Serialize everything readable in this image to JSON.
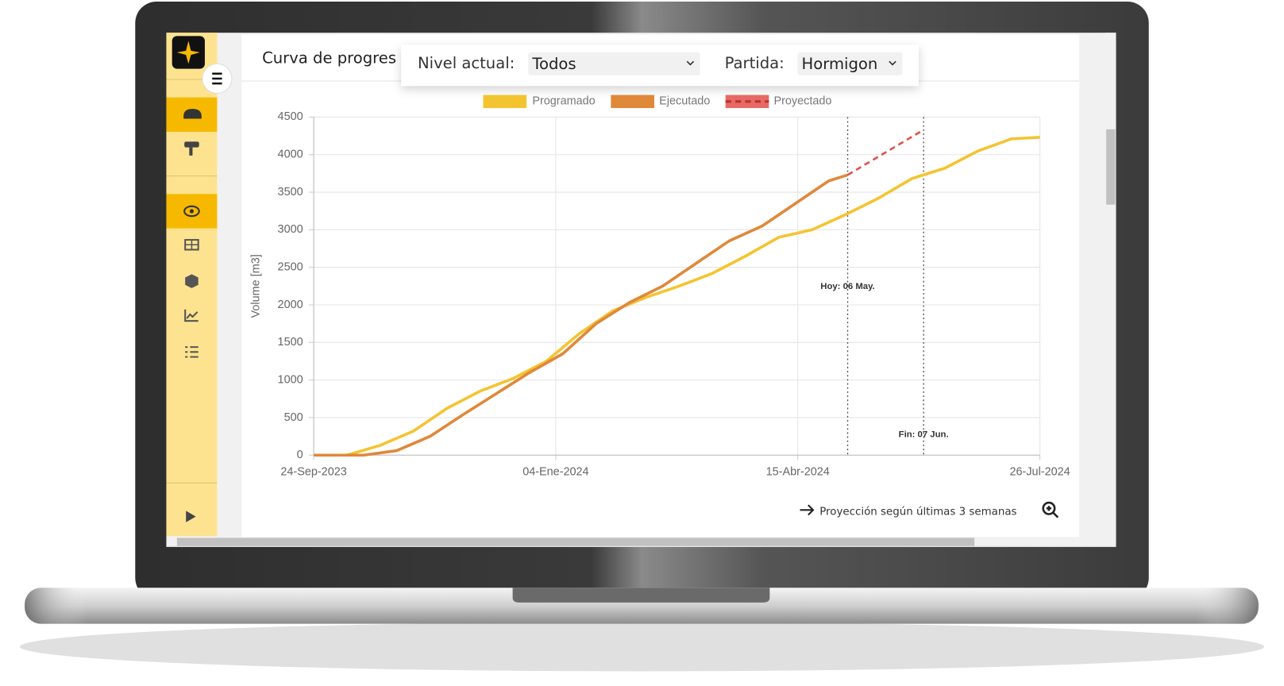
{
  "ui": {
    "title": "Curva de progres",
    "level_label": "Nivel actual:",
    "level_value": "Todos",
    "item_label": "Partida:",
    "item_value": "Hormigon",
    "projection_note": "Proyección según últimas 3 semanas"
  },
  "chart_data": {
    "type": "line",
    "y_label": "Volume [m3]",
    "xlim": [
      "2023-09-24",
      "2024-07-26"
    ],
    "xticks": [
      {
        "value": "2023-09-24",
        "label": "24-Sep-2023"
      },
      {
        "value": "2024-01-04",
        "label": "04-Ene-2024"
      },
      {
        "value": "2024-04-15",
        "label": "15-Abr-2024"
      },
      {
        "value": "2024-07-26",
        "label": "26-Jul-2024"
      }
    ],
    "ylim": [
      0,
      4500
    ],
    "yticks": [
      0,
      500,
      1000,
      1500,
      2000,
      2500,
      3000,
      3500,
      4000,
      4500
    ],
    "grid": true,
    "series": [
      {
        "name": "Programado",
        "color": "#f4c430",
        "dashed": false,
        "x": [
          "2023-09-24",
          "2023-10-08",
          "2023-10-22",
          "2023-11-05",
          "2023-11-19",
          "2023-12-03",
          "2023-12-17",
          "2023-12-31",
          "2024-01-14",
          "2024-01-28",
          "2024-02-11",
          "2024-02-25",
          "2024-03-10",
          "2024-03-24",
          "2024-04-07",
          "2024-04-21",
          "2024-05-05",
          "2024-05-19",
          "2024-06-02",
          "2024-06-16",
          "2024-06-30",
          "2024-07-14",
          "2024-07-26"
        ],
        "values": [
          0,
          0,
          130,
          320,
          620,
          850,
          1020,
          1250,
          1620,
          1920,
          2100,
          2250,
          2420,
          2650,
          2900,
          3000,
          3200,
          3420,
          3680,
          3820,
          4050,
          4210,
          4230
        ]
      },
      {
        "name": "Ejecutado",
        "color": "#e0883a",
        "dashed": false,
        "x": [
          "2023-09-24",
          "2023-10-15",
          "2023-10-29",
          "2023-11-12",
          "2023-11-26",
          "2023-12-10",
          "2023-12-24",
          "2024-01-07",
          "2024-01-21",
          "2024-02-04",
          "2024-02-18",
          "2024-03-03",
          "2024-03-17",
          "2024-03-31",
          "2024-04-14",
          "2024-04-28",
          "2024-05-06"
        ],
        "values": [
          0,
          0,
          60,
          250,
          540,
          820,
          1100,
          1350,
          1750,
          2030,
          2250,
          2550,
          2850,
          3050,
          3350,
          3650,
          3730
        ]
      },
      {
        "name": "Proyectado",
        "color": "#e0504a",
        "dashed": true,
        "x": [
          "2024-05-06",
          "2024-06-07"
        ],
        "values": [
          3730,
          4330
        ]
      }
    ],
    "annotations": [
      {
        "x": "2024-05-06",
        "label": "Hoy: 06 May."
      },
      {
        "x": "2024-06-07",
        "label": "Fin: 07 Jun."
      }
    ]
  }
}
